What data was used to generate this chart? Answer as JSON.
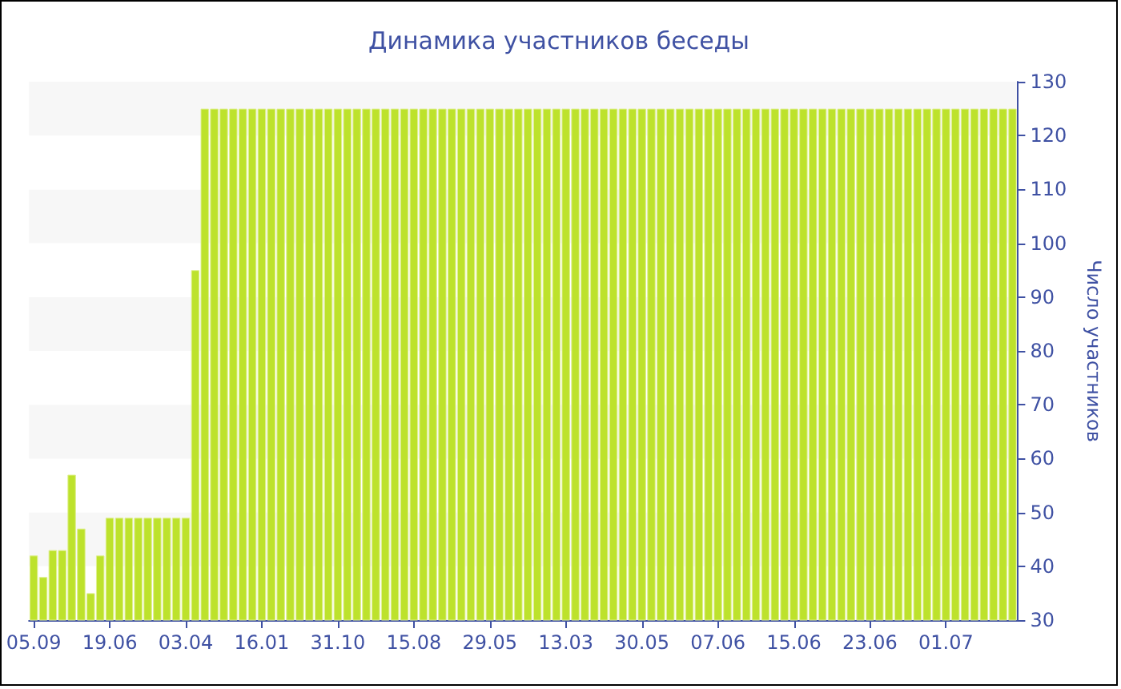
{
  "chart_data": {
    "type": "bar",
    "title": "Динамика участников беседы",
    "ylabel": "Число участников",
    "categories": [
      "05.09",
      null,
      null,
      null,
      null,
      null,
      null,
      null,
      "19.06",
      null,
      null,
      null,
      null,
      null,
      null,
      null,
      "03.04",
      null,
      null,
      null,
      null,
      null,
      null,
      null,
      "16.01",
      null,
      null,
      null,
      null,
      null,
      null,
      null,
      "31.10",
      null,
      null,
      null,
      null,
      null,
      null,
      null,
      "15.08",
      null,
      null,
      null,
      null,
      null,
      null,
      null,
      "29.05",
      null,
      null,
      null,
      null,
      null,
      null,
      null,
      "13.03",
      null,
      null,
      null,
      null,
      null,
      null,
      null,
      "30.05",
      null,
      null,
      null,
      null,
      null,
      null,
      null,
      "07.06",
      null,
      null,
      null,
      null,
      null,
      null,
      null,
      "15.06",
      null,
      null,
      null,
      null,
      null,
      null,
      null,
      "23.06",
      null,
      null,
      null,
      null,
      null,
      null,
      null,
      "01.07",
      null,
      null,
      null,
      null,
      null,
      null,
      null
    ],
    "values": [
      42,
      38,
      43,
      43,
      57,
      47,
      35,
      42,
      49,
      49,
      49,
      49,
      49,
      49,
      49,
      49,
      49,
      95,
      125,
      125,
      125,
      125,
      125,
      125,
      125,
      125,
      125,
      125,
      125,
      125,
      125,
      125,
      125,
      125,
      125,
      125,
      125,
      125,
      125,
      125,
      125,
      125,
      125,
      125,
      125,
      125,
      125,
      125,
      125,
      125,
      125,
      125,
      125,
      125,
      125,
      125,
      125,
      125,
      125,
      125,
      125,
      125,
      125,
      125,
      125,
      125,
      125,
      125,
      125,
      125,
      125,
      125,
      125,
      125,
      125,
      125,
      125,
      125,
      125,
      125,
      125,
      125,
      125,
      125,
      125,
      125,
      125,
      125,
      125,
      125,
      125,
      125,
      125,
      125,
      125,
      125,
      125,
      125,
      125,
      125,
      125,
      125,
      125,
      125
    ],
    "color": "#bde22c",
    "ylim": [
      30,
      130
    ],
    "yticks": [
      30,
      40,
      50,
      60,
      70,
      80,
      90,
      100,
      110,
      120,
      130
    ]
  }
}
